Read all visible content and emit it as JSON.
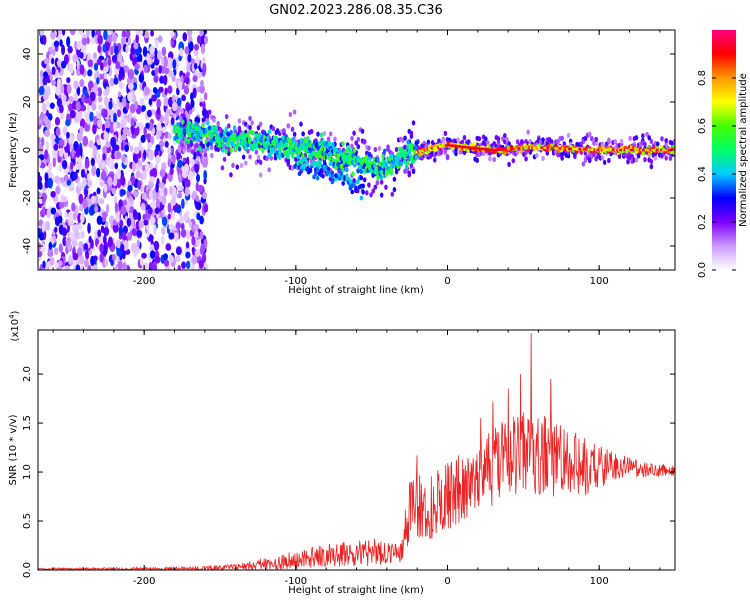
{
  "title": "GN02.2023.286.08.35.C36",
  "chart_data": [
    {
      "type": "heatmap",
      "name": "spectrogram",
      "xlabel": "Height of straight line (km)",
      "ylabel": "Frequency (Hz)",
      "xlim": [
        -270,
        150
      ],
      "ylim": [
        -50,
        50
      ],
      "xticks": [
        -200,
        -100,
        0,
        100
      ],
      "yticks": [
        -40,
        -20,
        0,
        20,
        40
      ],
      "colorbar": {
        "label": "Normalized spectral amplitude",
        "ticks": [
          0.0,
          0.2,
          0.4,
          0.6,
          0.8
        ],
        "range": [
          0,
          1
        ],
        "colors": [
          "#ffffff",
          "#cc99ff",
          "#7a00ff",
          "#0000ff",
          "#00ccff",
          "#00ff66",
          "#44ff00",
          "#ffff00",
          "#ff9900",
          "#ff0000",
          "#ff0080"
        ]
      },
      "features": {
        "noise_region_x": [
          -270,
          -165
        ],
        "track": [
          {
            "x": -180,
            "f": 8
          },
          {
            "x": -150,
            "f": 5
          },
          {
            "x": -120,
            "f": 3
          },
          {
            "x": -90,
            "f": 0
          },
          {
            "x": -60,
            "f": -4
          },
          {
            "x": -45,
            "f": -8
          },
          {
            "x": -30,
            "f": -3
          },
          {
            "x": -15,
            "f": 0
          },
          {
            "x": 0,
            "f": 2
          },
          {
            "x": 30,
            "f": 0
          },
          {
            "x": 60,
            "f": 1
          },
          {
            "x": 100,
            "f": 0
          },
          {
            "x": 150,
            "f": 0
          }
        ],
        "secondary_branch": [
          {
            "x": -100,
            "f": -5
          },
          {
            "x": -70,
            "f": -10
          },
          {
            "x": -55,
            "f": -17
          }
        ]
      }
    },
    {
      "type": "line",
      "name": "snr",
      "xlabel": "Height of straight line (km)",
      "ylabel": "SNR (10 * v/v)",
      "multiplier_label": "(x10",
      "multiplier_exponent": "4",
      "multiplier_close": ")",
      "xlim": [
        -270,
        150
      ],
      "ylim": [
        0,
        2.45
      ],
      "xticks": [
        -200,
        -100,
        0,
        100
      ],
      "yticks": [
        0.0,
        0.5,
        1.0,
        1.5,
        2.0
      ],
      "color": "#ee2222",
      "envelope": [
        {
          "x": -270,
          "base": 0.01,
          "amp": 0.01
        },
        {
          "x": -180,
          "base": 0.01,
          "amp": 0.02
        },
        {
          "x": -140,
          "base": 0.03,
          "amp": 0.03
        },
        {
          "x": -110,
          "base": 0.08,
          "amp": 0.08
        },
        {
          "x": -80,
          "base": 0.15,
          "amp": 0.12
        },
        {
          "x": -50,
          "base": 0.18,
          "amp": 0.14
        },
        {
          "x": -30,
          "base": 0.2,
          "amp": 0.12
        },
        {
          "x": -25,
          "base": 0.65,
          "amp": 0.35
        },
        {
          "x": -10,
          "base": 0.65,
          "amp": 0.35
        },
        {
          "x": 10,
          "base": 0.85,
          "amp": 0.35
        },
        {
          "x": 30,
          "base": 1.05,
          "amp": 0.4
        },
        {
          "x": 50,
          "base": 1.2,
          "amp": 0.45
        },
        {
          "x": 70,
          "base": 1.15,
          "amp": 0.4
        },
        {
          "x": 90,
          "base": 1.05,
          "amp": 0.3
        },
        {
          "x": 110,
          "base": 1.05,
          "amp": 0.15
        },
        {
          "x": 130,
          "base": 1.02,
          "amp": 0.08
        },
        {
          "x": 150,
          "base": 1.02,
          "amp": 0.06
        }
      ],
      "spikes": [
        {
          "x": 55,
          "y": 2.42
        },
        {
          "x": 48,
          "y": 2.0
        },
        {
          "x": 68,
          "y": 1.95
        },
        {
          "x": 40,
          "y": 1.85
        },
        {
          "x": 30,
          "y": 1.72
        },
        {
          "x": 22,
          "y": 1.55
        },
        {
          "x": -20,
          "y": 1.17
        }
      ]
    }
  ]
}
